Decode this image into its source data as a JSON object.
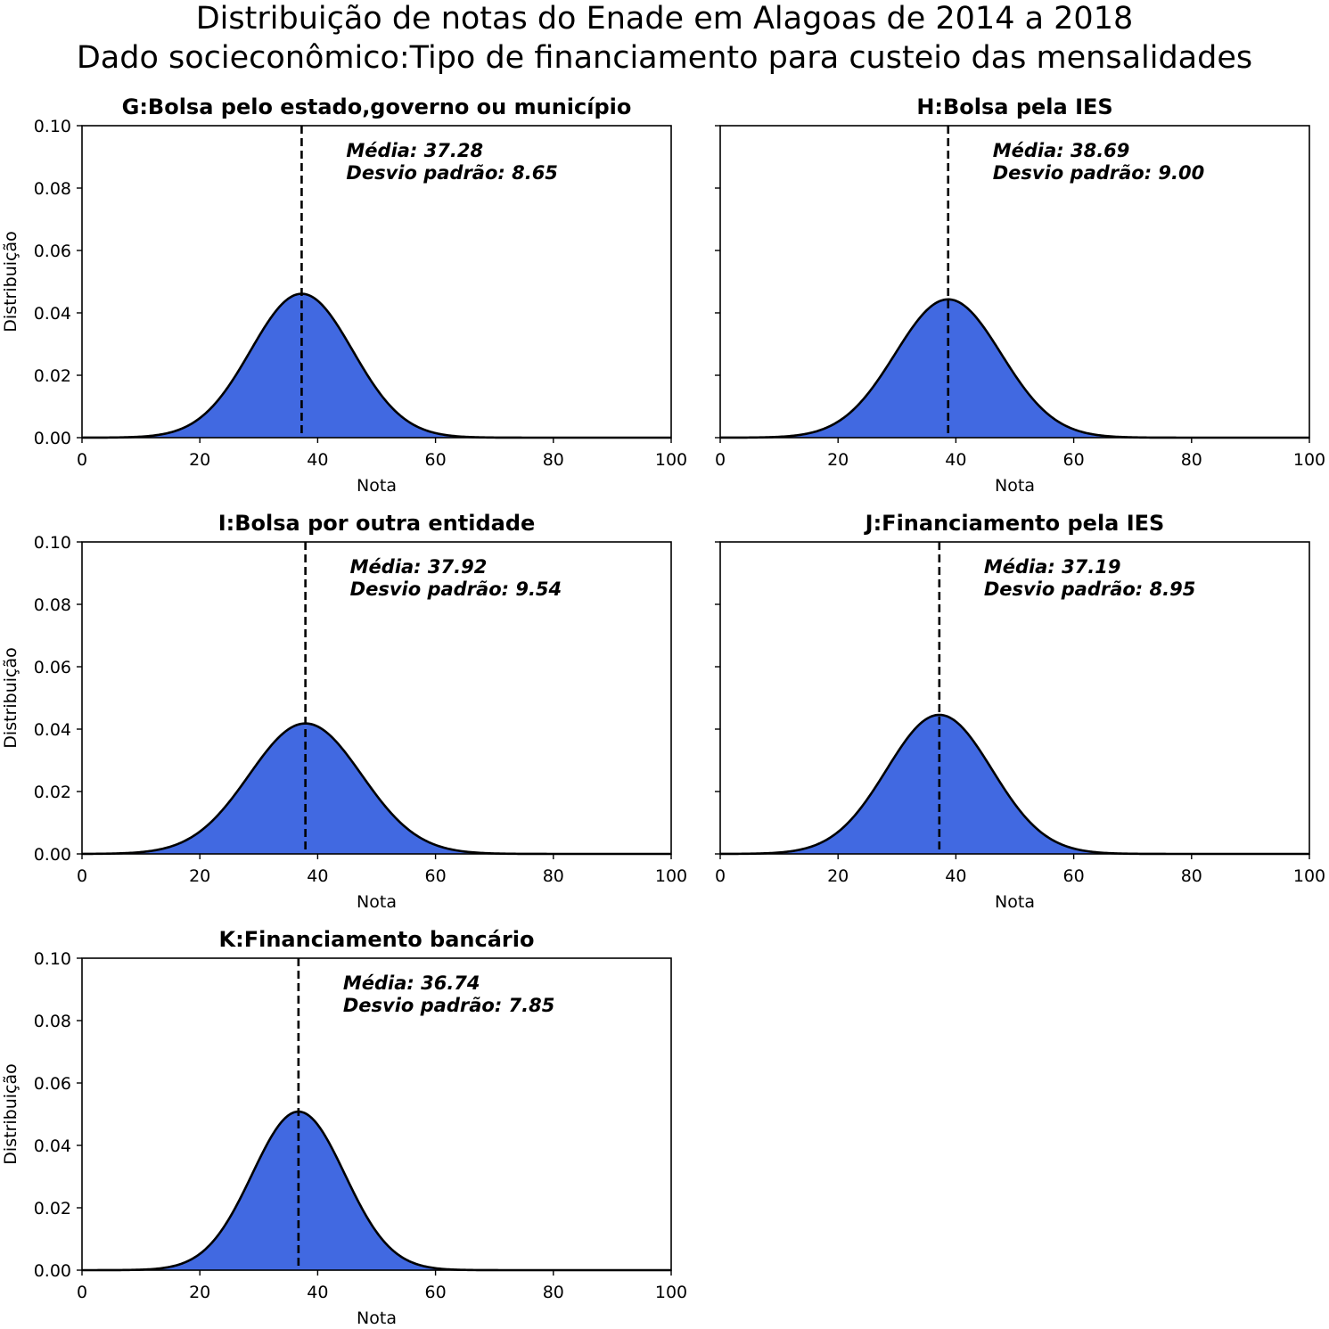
{
  "figure": {
    "title_line1": "Distribuição de notas do Enade em Alagoas de 2014 a 2018",
    "title_line2": "Dado socieconômico:Tipo de financiamento para custeio das mensalidades"
  },
  "chart_data": [
    {
      "type": "area",
      "title": "G:Bolsa pelo estado,governo ou município",
      "xlabel": "Nota",
      "ylabel": "Distribuição",
      "xlim": [
        0,
        100
      ],
      "ylim": [
        0,
        0.1
      ],
      "x_ticks": [
        "0",
        "20",
        "40",
        "60",
        "80",
        "100"
      ],
      "y_ticks": [
        "0.00",
        "0.02",
        "0.04",
        "0.06",
        "0.08",
        "0.10"
      ],
      "mean": 37.28,
      "std": 8.65,
      "annotation_line1": "Média: 37.28",
      "annotation_line2": "Desvio padrão: 8.65",
      "fill_color": "#4169e1"
    },
    {
      "type": "area",
      "title": "H:Bolsa pela IES",
      "xlabel": "Nota",
      "ylabel": "",
      "xlim": [
        0,
        100
      ],
      "ylim": [
        0,
        0.1
      ],
      "x_ticks": [
        "0",
        "20",
        "40",
        "60",
        "80",
        "100"
      ],
      "y_ticks": [
        "",
        "",
        "",
        "",
        "",
        ""
      ],
      "mean": 38.69,
      "std": 9.0,
      "annotation_line1": "Média: 38.69",
      "annotation_line2": "Desvio padrão: 9.00",
      "fill_color": "#4169e1"
    },
    {
      "type": "area",
      "title": "I:Bolsa por outra entidade",
      "xlabel": "Nota",
      "ylabel": "Distribuição",
      "xlim": [
        0,
        100
      ],
      "ylim": [
        0,
        0.1
      ],
      "x_ticks": [
        "0",
        "20",
        "40",
        "60",
        "80",
        "100"
      ],
      "y_ticks": [
        "0.00",
        "0.02",
        "0.04",
        "0.06",
        "0.08",
        "0.10"
      ],
      "mean": 37.92,
      "std": 9.54,
      "annotation_line1": "Média: 37.92",
      "annotation_line2": "Desvio padrão: 9.54",
      "fill_color": "#4169e1"
    },
    {
      "type": "area",
      "title": "J:Financiamento pela IES",
      "xlabel": "Nota",
      "ylabel": "",
      "xlim": [
        0,
        100
      ],
      "ylim": [
        0,
        0.1
      ],
      "x_ticks": [
        "0",
        "20",
        "40",
        "60",
        "80",
        "100"
      ],
      "y_ticks": [
        "",
        "",
        "",
        "",
        "",
        ""
      ],
      "mean": 37.19,
      "std": 8.95,
      "annotation_line1": "Média: 37.19",
      "annotation_line2": "Desvio padrão: 8.95",
      "fill_color": "#4169e1"
    },
    {
      "type": "area",
      "title": "K:Financiamento bancário",
      "xlabel": "Nota",
      "ylabel": "Distribuição",
      "xlim": [
        0,
        100
      ],
      "ylim": [
        0,
        0.1
      ],
      "x_ticks": [
        "0",
        "20",
        "40",
        "60",
        "80",
        "100"
      ],
      "y_ticks": [
        "0.00",
        "0.02",
        "0.04",
        "0.06",
        "0.08",
        "0.10"
      ],
      "mean": 36.74,
      "std": 7.85,
      "annotation_line1": "Média: 36.74",
      "annotation_line2": "Desvio padrão: 7.85",
      "fill_color": "#4169e1"
    }
  ]
}
